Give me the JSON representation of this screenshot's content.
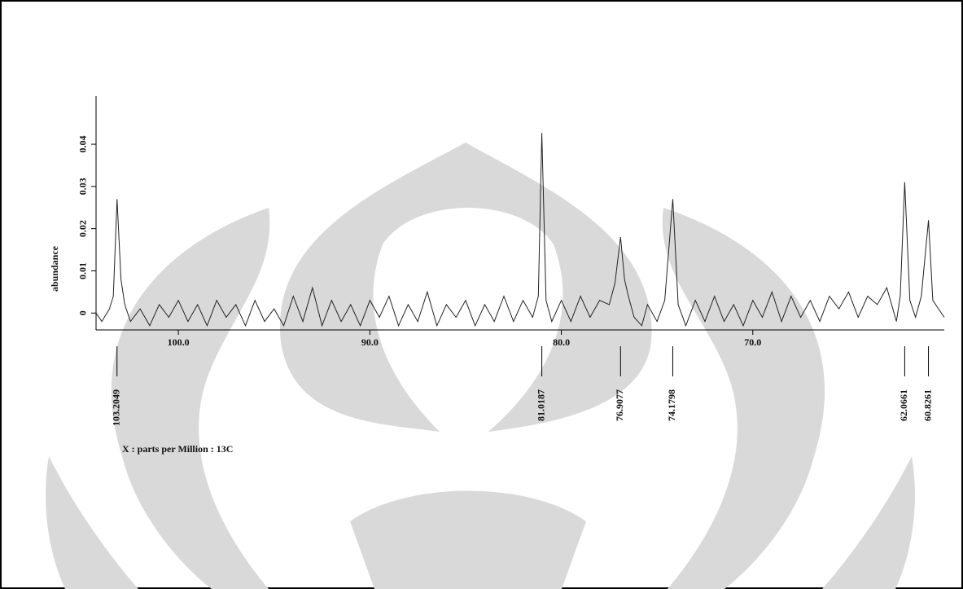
{
  "chart_data": {
    "type": "line",
    "y_label": "abundance",
    "x_label": "X : parts per Million : 13C",
    "x": [
      104.3,
      104.0,
      103.6,
      103.4,
      103.2049,
      103.0,
      102.8,
      102.5,
      102.0,
      101.5,
      101.0,
      100.5,
      100.0,
      99.5,
      99.0,
      98.5,
      98.0,
      97.5,
      97.0,
      96.5,
      96.0,
      95.5,
      95.0,
      94.5,
      94.0,
      93.5,
      93.0,
      92.5,
      92.0,
      91.5,
      91.0,
      90.5,
      90.0,
      89.5,
      89.0,
      88.5,
      88.0,
      87.5,
      87.0,
      86.5,
      86.0,
      85.5,
      85.0,
      84.5,
      84.0,
      83.5,
      83.0,
      82.5,
      82.0,
      81.5,
      81.2,
      81.0187,
      80.8,
      80.5,
      80.0,
      79.5,
      79.0,
      78.5,
      78.0,
      77.5,
      77.2,
      76.9077,
      76.7,
      76.5,
      76.2,
      75.8,
      75.5,
      75.0,
      74.6,
      74.1798,
      73.9,
      73.5,
      73.0,
      72.5,
      72.0,
      71.5,
      71.0,
      70.5,
      70.0,
      69.5,
      69.0,
      68.5,
      68.0,
      67.5,
      67.0,
      66.5,
      66.0,
      65.5,
      65.0,
      64.5,
      64.0,
      63.5,
      63.0,
      62.5,
      62.3,
      62.0661,
      61.8,
      61.5,
      61.2,
      60.8261,
      60.6,
      60.3,
      60.0
    ],
    "series": [
      {
        "color": "#222222",
        "values": [
          0.0,
          -0.002,
          0.001,
          0.004,
          0.027,
          0.008,
          0.002,
          -0.002,
          0.001,
          -0.003,
          0.002,
          -0.001,
          0.003,
          -0.002,
          0.002,
          -0.003,
          0.003,
          -0.001,
          0.002,
          -0.003,
          0.003,
          -0.002,
          0.001,
          -0.003,
          0.004,
          -0.002,
          0.006,
          -0.003,
          0.003,
          -0.002,
          0.002,
          -0.003,
          0.003,
          -0.001,
          0.004,
          -0.003,
          0.002,
          -0.002,
          0.005,
          -0.003,
          0.002,
          -0.001,
          0.003,
          -0.003,
          0.002,
          -0.002,
          0.004,
          -0.002,
          0.003,
          -0.001,
          0.004,
          0.0427,
          0.003,
          -0.002,
          0.003,
          -0.002,
          0.004,
          -0.001,
          0.003,
          0.002,
          0.007,
          0.018,
          0.008,
          0.004,
          -0.001,
          -0.003,
          0.002,
          -0.002,
          0.003,
          0.027,
          0.002,
          -0.003,
          0.003,
          -0.002,
          0.004,
          -0.002,
          0.002,
          -0.003,
          0.003,
          -0.001,
          0.005,
          -0.002,
          0.004,
          -0.001,
          0.003,
          -0.002,
          0.004,
          0.001,
          0.005,
          -0.001,
          0.004,
          0.002,
          0.006,
          -0.002,
          0.004,
          0.031,
          0.003,
          -0.001,
          0.004,
          0.022,
          0.003,
          0.001,
          -0.001
        ]
      }
    ],
    "xlim": [
      104.3,
      60.0
    ],
    "xticks": [
      {
        "value": 100,
        "label": "100.0"
      },
      {
        "value": 90,
        "label": "90.0"
      },
      {
        "value": 80,
        "label": "80.0"
      },
      {
        "value": 70,
        "label": "70.0"
      }
    ],
    "ylim": [
      -0.004,
      0.0514
    ],
    "yticks": [
      0,
      0.01,
      0.02,
      0.03,
      0.04
    ],
    "peaks": [
      103.2049,
      81.0187,
      76.9077,
      74.1798,
      62.0661,
      60.8261
    ]
  }
}
